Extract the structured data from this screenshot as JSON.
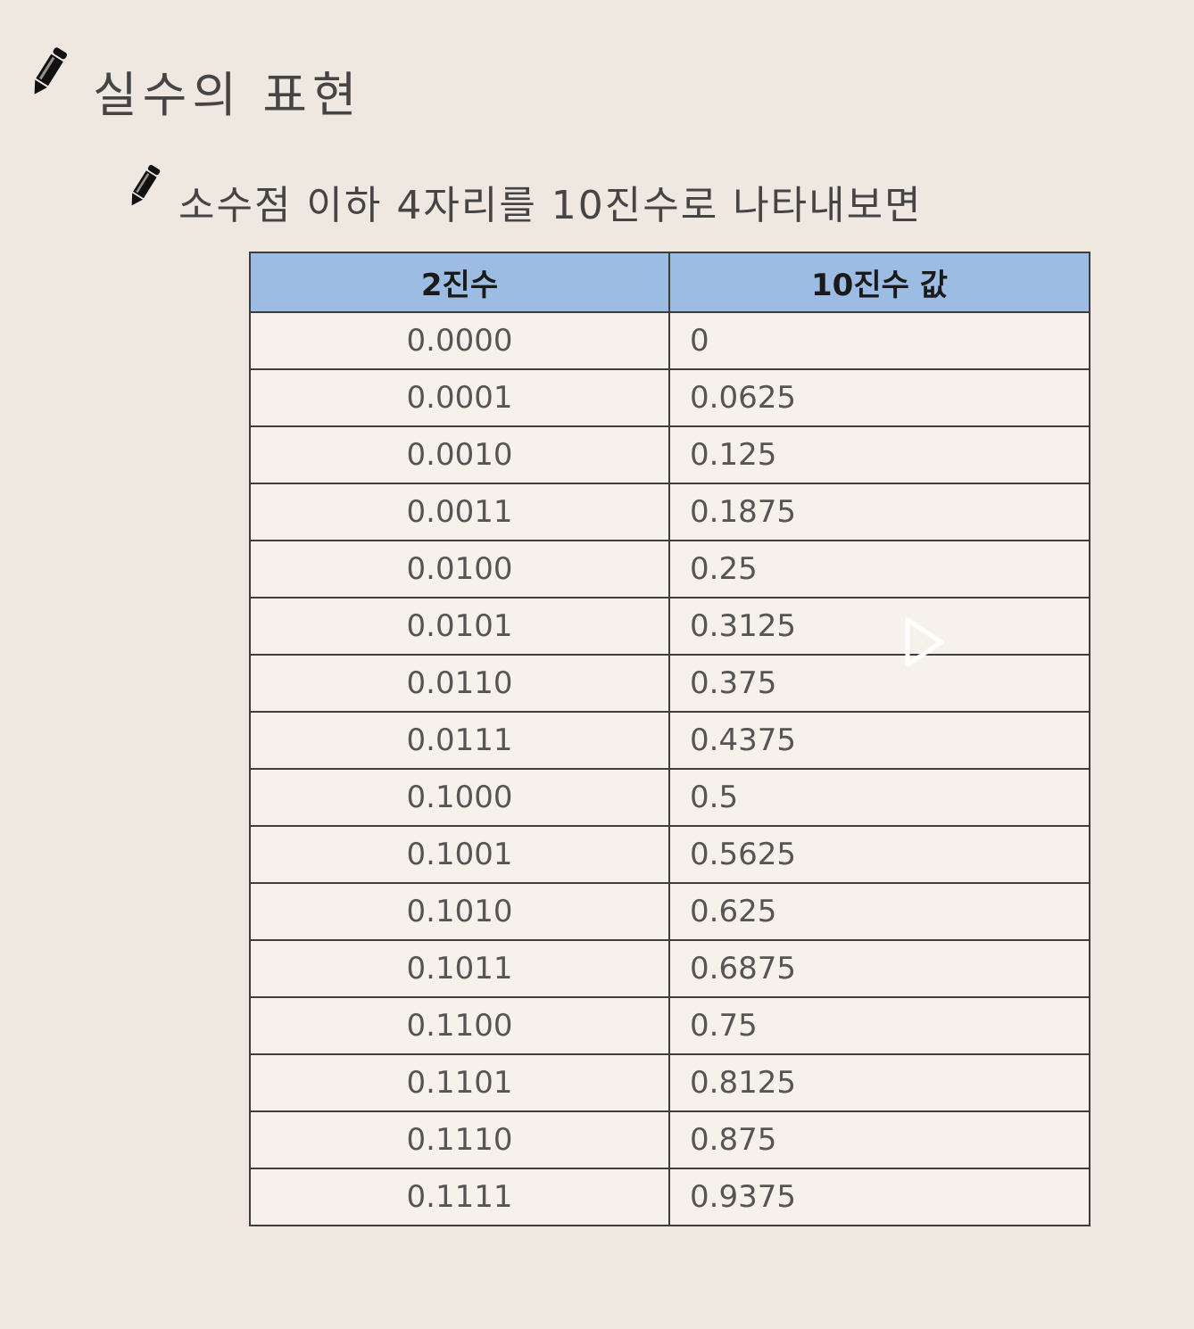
{
  "title": "실수의 표현",
  "subtitle": "소수점 이하 4자리를 10진수로 나타내보면",
  "table": {
    "headers": [
      "2진수",
      "10진수 값"
    ],
    "rows": [
      {
        "binary": "0.0000",
        "decimal": "0"
      },
      {
        "binary": "0.0001",
        "decimal": "0.0625"
      },
      {
        "binary": "0.0010",
        "decimal": "0.125"
      },
      {
        "binary": "0.0011",
        "decimal": "0.1875"
      },
      {
        "binary": "0.0100",
        "decimal": "0.25"
      },
      {
        "binary": "0.0101",
        "decimal": "0.3125"
      },
      {
        "binary": "0.0110",
        "decimal": "0.375"
      },
      {
        "binary": "0.0111",
        "decimal": "0.4375"
      },
      {
        "binary": "0.1000",
        "decimal": "0.5"
      },
      {
        "binary": "0.1001",
        "decimal": "0.5625"
      },
      {
        "binary": "0.1010",
        "decimal": "0.625"
      },
      {
        "binary": "0.1011",
        "decimal": "0.6875"
      },
      {
        "binary": "0.1100",
        "decimal": "0.75"
      },
      {
        "binary": "0.1101",
        "decimal": "0.8125"
      },
      {
        "binary": "0.1110",
        "decimal": "0.875"
      },
      {
        "binary": "0.1111",
        "decimal": "0.9375"
      }
    ]
  },
  "icons": {
    "bullet": "pencil-icon",
    "overlay": "play-icon"
  },
  "colors": {
    "background": "#efe8e0",
    "header_fill": "#9dbce3",
    "border": "#3d3d3d"
  }
}
